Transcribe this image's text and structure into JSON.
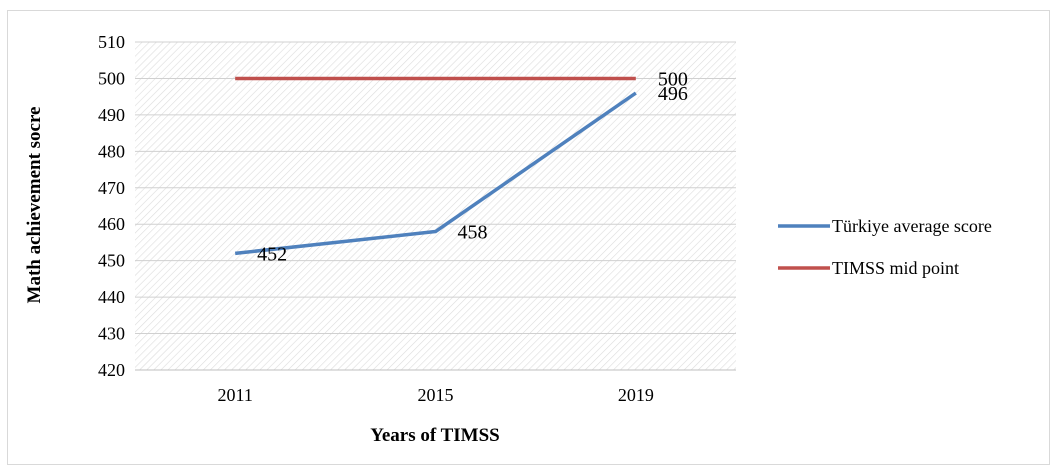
{
  "chart_data": {
    "type": "line",
    "categories": [
      "2011",
      "2015",
      "2019"
    ],
    "xlabel": "Years of TIMSS",
    "ylabel": "Math achievement socre",
    "ylim": [
      420,
      510
    ],
    "ytick_step": 10,
    "grid": true,
    "legend_position": "right",
    "series": [
      {
        "name": "Türkiye average score",
        "values": [
          452,
          458,
          496
        ],
        "color": "#4f81bd",
        "data_labels": [
          "452",
          "458",
          "496"
        ]
      },
      {
        "name": "TIMSS mid point",
        "values": [
          500,
          500,
          500
        ],
        "color": "#c0504d",
        "data_labels": [
          "",
          "",
          "500"
        ]
      }
    ]
  }
}
